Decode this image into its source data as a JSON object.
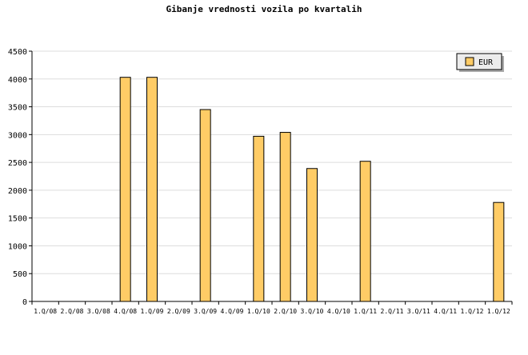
{
  "chart_data": {
    "type": "bar",
    "title": "Gibanje vrednosti vozila po kvartalih",
    "xlabel": "",
    "ylabel": "",
    "ylim": [
      0,
      4500
    ],
    "yticks": [
      0,
      500,
      1000,
      1500,
      2000,
      2500,
      3000,
      3500,
      4000,
      4500
    ],
    "grid": true,
    "legend_position": "top-right",
    "categories": [
      "1.Q/08",
      "2.Q/08",
      "3.Q/08",
      "4.Q/08",
      "1.Q/09",
      "2.Q/09",
      "3.Q/09",
      "4.Q/09",
      "1.Q/10",
      "2.Q/10",
      "3.Q/10",
      "4.Q/10",
      "1.Q/11",
      "2.Q/11",
      "3.Q/11",
      "4.Q/11",
      "1.Q/12",
      "1.Q/12"
    ],
    "series": [
      {
        "name": "EUR",
        "color": "#ffcc66",
        "values": [
          0,
          0,
          0,
          4030,
          4030,
          0,
          3450,
          0,
          2970,
          3040,
          2390,
          0,
          2520,
          0,
          0,
          0,
          0,
          1780
        ]
      }
    ]
  }
}
